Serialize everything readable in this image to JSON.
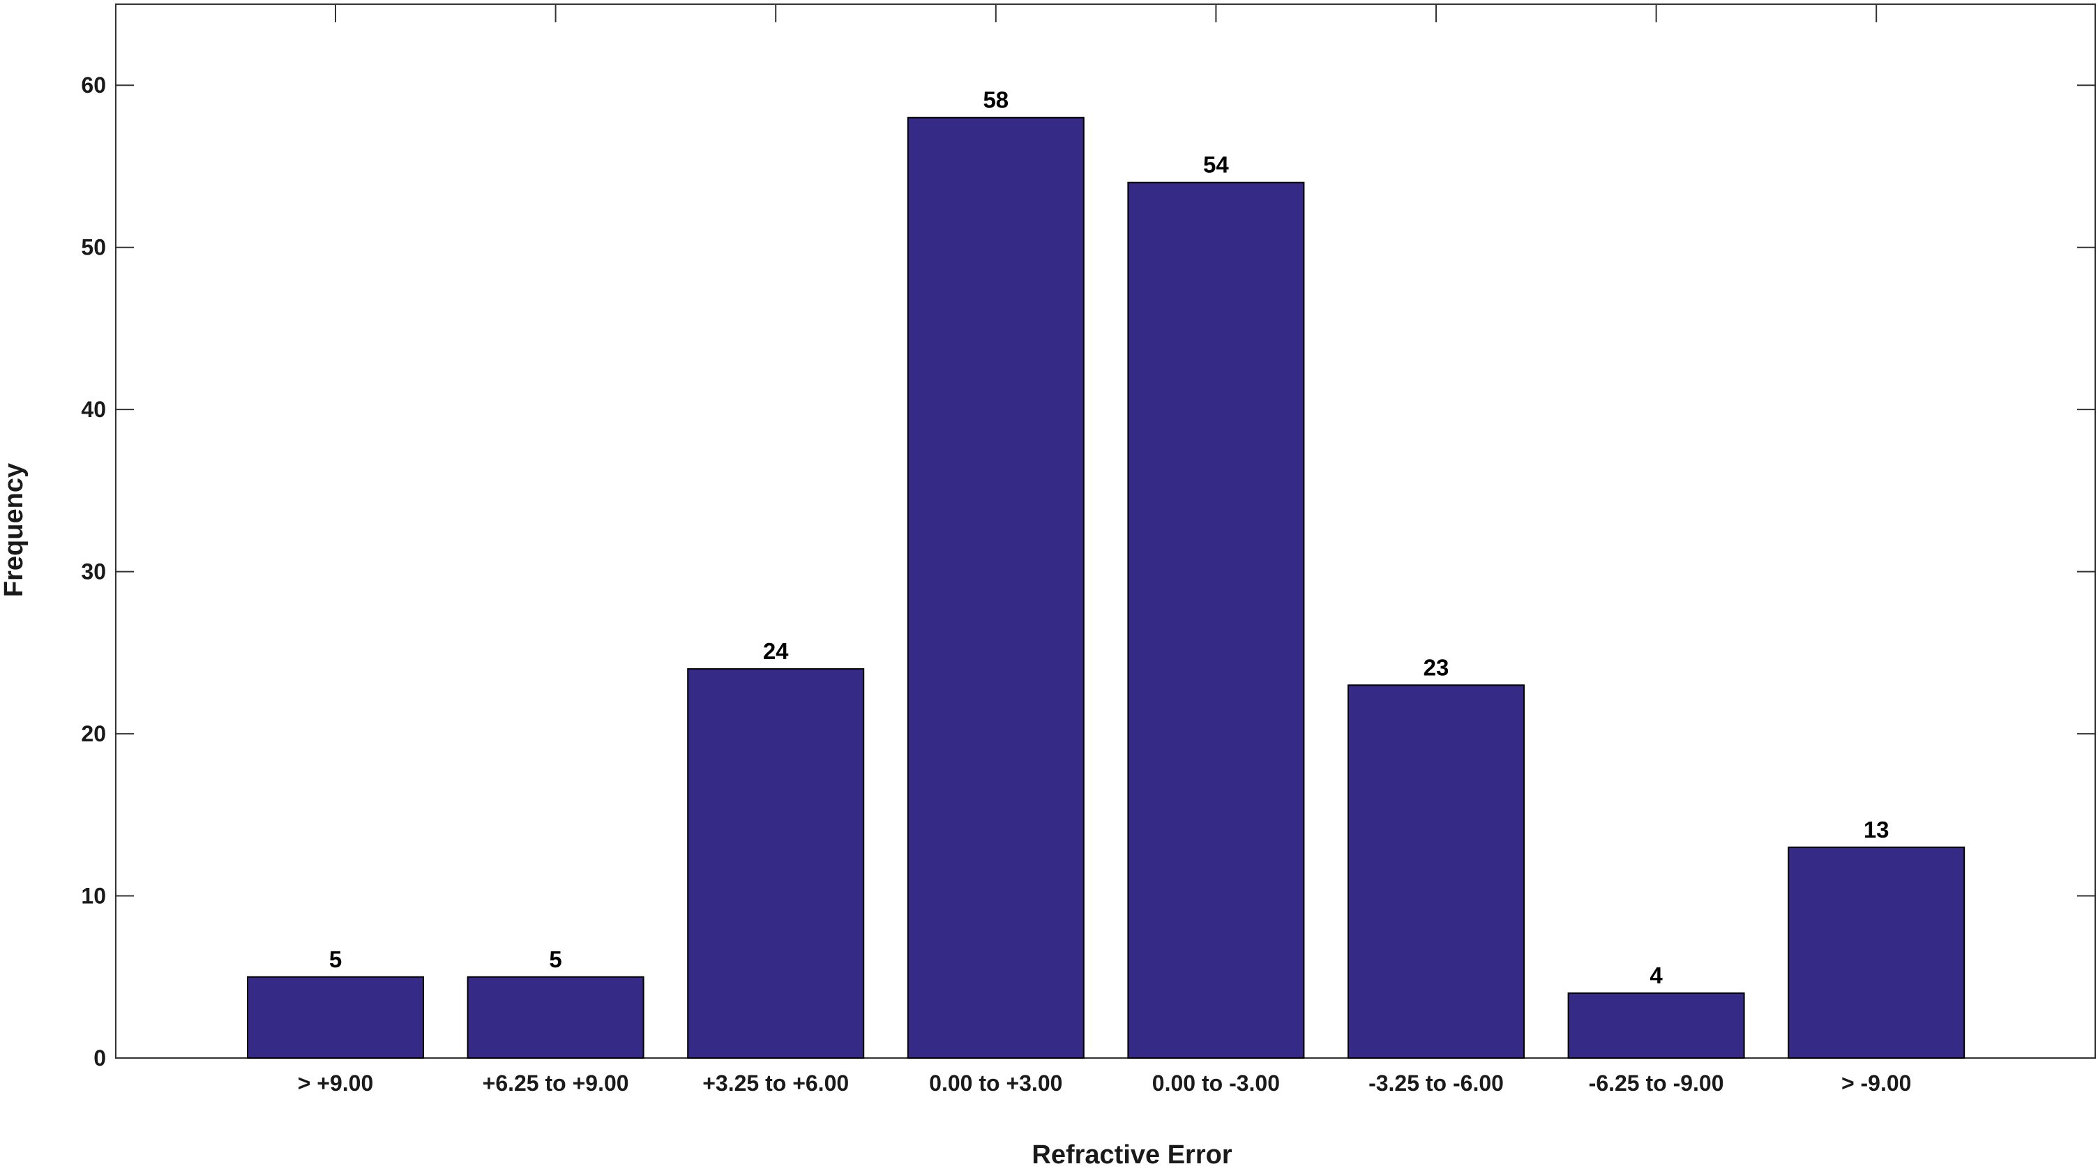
{
  "chart_data": {
    "type": "bar",
    "title": "",
    "xlabel": "Refractive Error",
    "ylabel": "Frequency",
    "categories": [
      "> +9.00",
      "+6.25 to +9.00",
      "+3.25 to +6.00",
      "0.00 to +3.00",
      "0.00 to -3.00",
      "-3.25 to -6.00",
      "-6.25 to -9.00",
      "> -9.00"
    ],
    "values": [
      5,
      5,
      24,
      58,
      54,
      23,
      4,
      13
    ],
    "value_labels": [
      "5",
      "5",
      "24",
      "58",
      "54",
      "23",
      "4",
      "13"
    ],
    "ylim": [
      0,
      65
    ],
    "yticks": [
      0,
      10,
      20,
      30,
      40,
      50,
      60
    ],
    "ytick_labels": [
      "0",
      "10",
      "20",
      "30",
      "40",
      "50",
      "60"
    ],
    "grid": false,
    "legend": "none",
    "colors": {
      "bar_fill": "#352a86",
      "bar_stroke": "#000000",
      "axis": "#333333",
      "text": "#1a1a1a"
    }
  }
}
